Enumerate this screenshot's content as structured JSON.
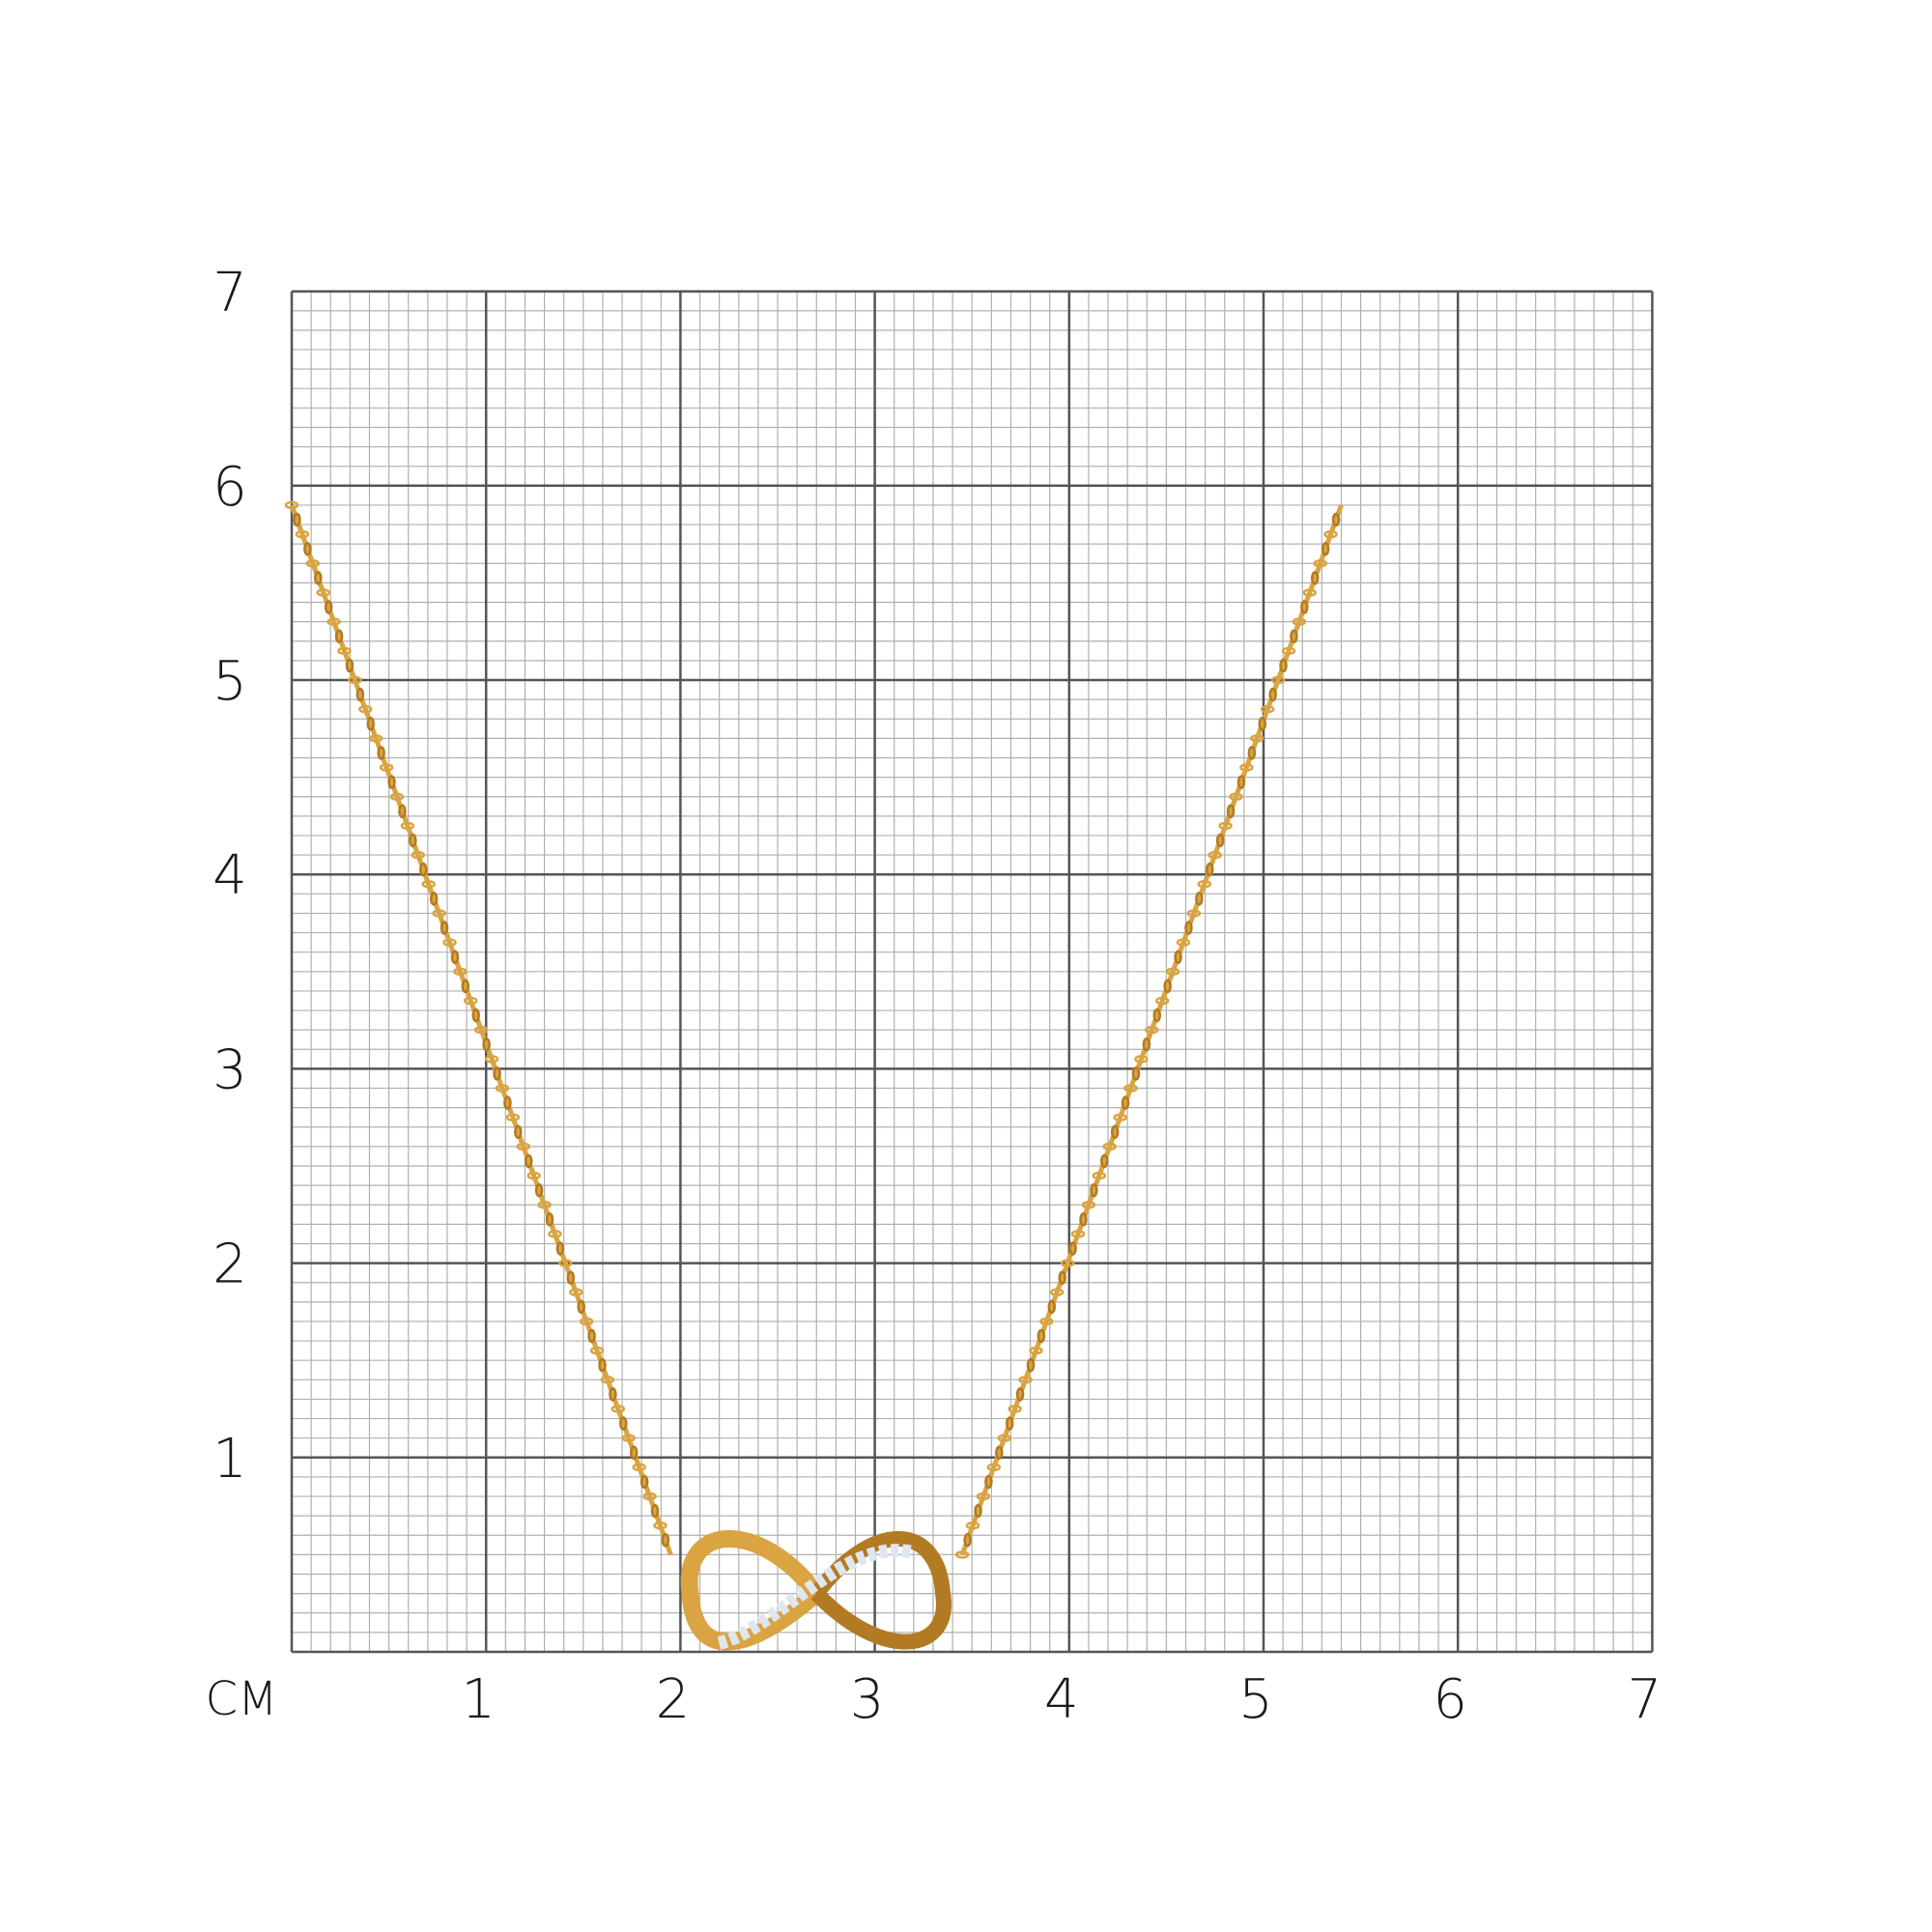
{
  "scale": {
    "unit_label": "CM",
    "x_ticks": [
      "1",
      "2",
      "3",
      "4",
      "5",
      "6",
      "7"
    ],
    "y_ticks": [
      "1",
      "2",
      "3",
      "4",
      "5",
      "6",
      "7"
    ],
    "range_cm": [
      0,
      7
    ],
    "minor_divisions_per_cm": 10
  },
  "product": {
    "type": "necklace with infinity pendant",
    "chain_left_end_cm": [
      0,
      5.9
    ],
    "chain_right_end_cm": [
      5.4,
      5.9
    ],
    "pendant_span_cm": [
      2.0,
      3.4
    ],
    "pendant_height_cm": 0.6
  },
  "colors": {
    "gold": "#d9a441",
    "gold_dark": "#b27a22",
    "stones": "#dfe6f0",
    "grid_major": "#555555",
    "grid_minor": "#b0b0b0"
  }
}
